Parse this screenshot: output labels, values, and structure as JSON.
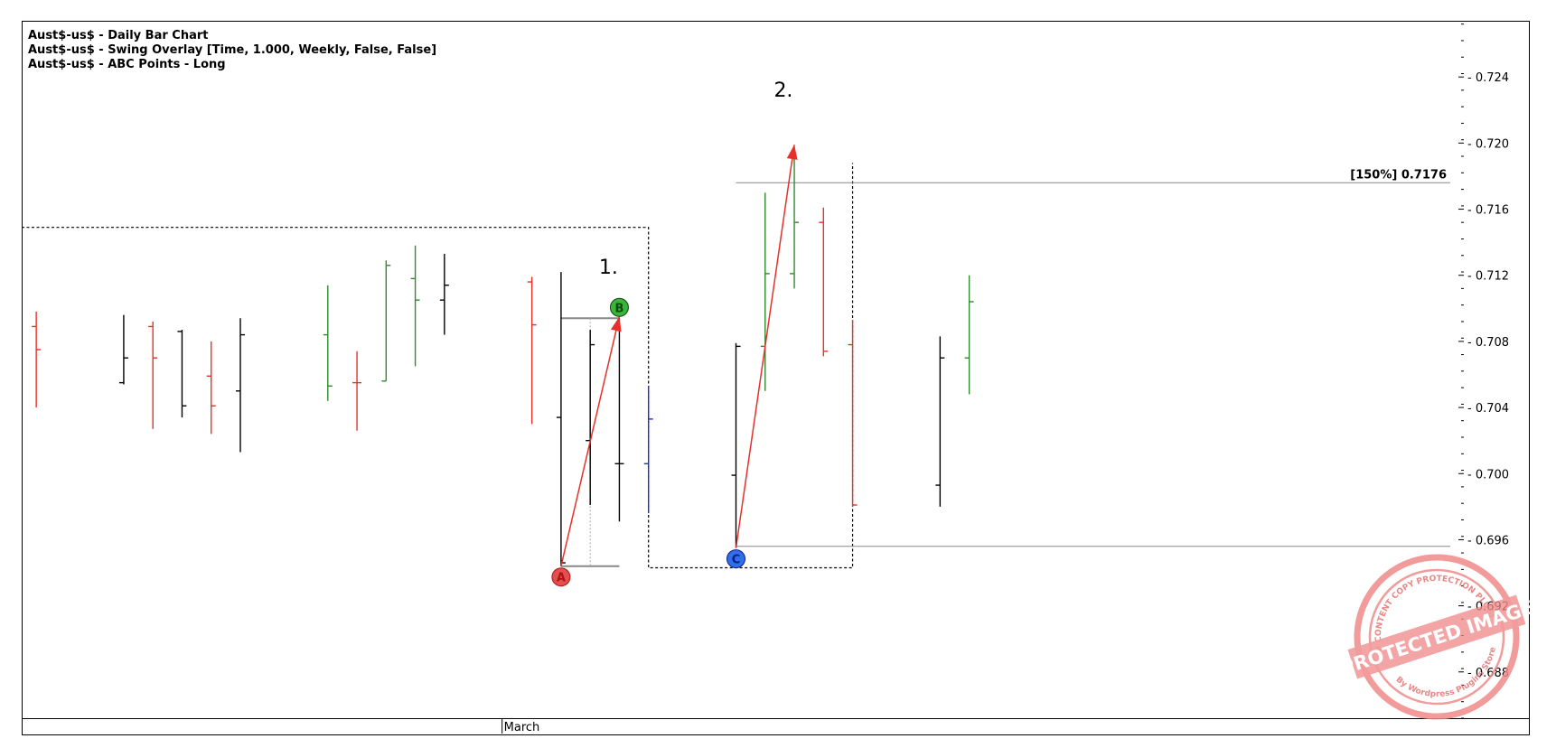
{
  "header": {
    "lines": [
      "Aust$-us$ - Daily Bar Chart",
      "Aust$-us$ - Swing Overlay [Time, 1.000, Weekly, False, False]",
      "Aust$-us$ - ABC Points - Long"
    ]
  },
  "chart_data": {
    "type": "bar",
    "subtype": "ohlc",
    "y_axis": {
      "ticks": [
        "0.724",
        "0.720",
        "0.716",
        "0.712",
        "0.708",
        "0.704",
        "0.700",
        "0.696",
        "0.692",
        "0.688"
      ],
      "ylim": [
        0.6852,
        0.7274
      ],
      "position": "right"
    },
    "x_axis": {
      "labels": [
        {
          "text": "March",
          "index": 17
        }
      ],
      "xlim": [
        -0.5,
        48.5
      ]
    },
    "colors": {
      "up": "#2e8b2e",
      "down": "#e8302a",
      "neutral": "#000000",
      "blue": "#1f2fd6",
      "arrow": "#e8302a",
      "grid": "#888888"
    },
    "bars": [
      {
        "i": 0,
        "o": 0.7089,
        "h": 0.7098,
        "l": 0.704,
        "c": 0.7075,
        "color": "down"
      },
      {
        "i": 3,
        "o": 0.7055,
        "h": 0.7096,
        "l": 0.7054,
        "c": 0.707,
        "color": "neutral"
      },
      {
        "i": 4,
        "o": 0.7089,
        "h": 0.7092,
        "l": 0.7027,
        "c": 0.707,
        "color": "down"
      },
      {
        "i": 5,
        "o": 0.7086,
        "h": 0.7087,
        "l": 0.7034,
        "c": 0.7041,
        "color": "neutral"
      },
      {
        "i": 6,
        "o": 0.7059,
        "h": 0.708,
        "l": 0.7024,
        "c": 0.7041,
        "color": "down"
      },
      {
        "i": 7,
        "o": 0.705,
        "h": 0.7094,
        "l": 0.7013,
        "c": 0.7084,
        "color": "neutral"
      },
      {
        "i": 10,
        "o": 0.7084,
        "h": 0.7114,
        "l": 0.7044,
        "c": 0.7053,
        "color": "up"
      },
      {
        "i": 11,
        "o": 0.7055,
        "h": 0.7074,
        "l": 0.7026,
        "c": 0.7055,
        "color": "down"
      },
      {
        "i": 12,
        "o": 0.7056,
        "h": 0.7129,
        "l": 0.7056,
        "c": 0.7126,
        "color": "up"
      },
      {
        "i": 13,
        "o": 0.7118,
        "h": 0.7138,
        "l": 0.7065,
        "c": 0.7105,
        "color": "up"
      },
      {
        "i": 14,
        "o": 0.7105,
        "h": 0.7133,
        "l": 0.7084,
        "c": 0.7114,
        "color": "neutral"
      },
      {
        "i": 17,
        "o": 0.7116,
        "h": 0.7119,
        "l": 0.703,
        "c": 0.709,
        "color": "down"
      },
      {
        "i": 18,
        "o": 0.7034,
        "h": 0.7122,
        "l": 0.6944,
        "c": 0.6946,
        "color": "neutral"
      },
      {
        "i": 19,
        "o": 0.702,
        "h": 0.7087,
        "l": 0.6981,
        "c": 0.7078,
        "color": "neutral"
      },
      {
        "i": 20,
        "o": 0.7006,
        "h": 0.7094,
        "l": 0.6971,
        "c": 0.7006,
        "color": "neutral"
      },
      {
        "i": 21,
        "o": 0.7006,
        "h": 0.7053,
        "l": 0.6976,
        "c": 0.7033,
        "color": "blue"
      },
      {
        "i": 24,
        "o": 0.6999,
        "h": 0.7079,
        "l": 0.6955,
        "c": 0.7077,
        "color": "neutral"
      },
      {
        "i": 25,
        "o": 0.7077,
        "h": 0.717,
        "l": 0.705,
        "c": 0.7121,
        "color": "up"
      },
      {
        "i": 26,
        "o": 0.7121,
        "h": 0.7198,
        "l": 0.7112,
        "c": 0.7152,
        "color": "up"
      },
      {
        "i": 27,
        "o": 0.7152,
        "h": 0.7161,
        "l": 0.7071,
        "c": 0.7074,
        "color": "down"
      },
      {
        "i": 28,
        "o": 0.7078,
        "h": 0.7093,
        "l": 0.698,
        "c": 0.6981,
        "color": "down"
      },
      {
        "i": 31,
        "o": 0.6993,
        "h": 0.7083,
        "l": 0.698,
        "c": 0.707,
        "color": "neutral"
      },
      {
        "i": 32,
        "o": 0.707,
        "h": 0.712,
        "l": 0.7048,
        "c": 0.7104,
        "color": "up"
      }
    ],
    "points": [
      {
        "label": "A",
        "i": 18,
        "price": 0.6944,
        "color": "#e05050",
        "text_color": "#b01010"
      },
      {
        "label": "B",
        "i": 20,
        "price": 0.7094,
        "color": "#3cb43c",
        "text_color": "#0a4a0a"
      },
      {
        "label": "C",
        "i": 24,
        "price": 0.6955,
        "color": "#2f6fe8",
        "text_color": "#0a1a8a"
      }
    ],
    "arrows": [
      {
        "from": {
          "i": 18,
          "price": 0.6944
        },
        "to": {
          "i": 20,
          "price": 0.7095
        }
      },
      {
        "from": {
          "i": 24,
          "price": 0.6955
        },
        "to": {
          "i": 26,
          "price": 0.7199
        }
      }
    ],
    "annotations": [
      {
        "text": "1.",
        "i": 19.3,
        "price": 0.7121
      },
      {
        "text": "2.",
        "i": 25.3,
        "price": 0.7228
      }
    ],
    "level": {
      "label": "[150%] 0.7176",
      "price": 0.7176,
      "from_i": 24
    },
    "c_level": {
      "price": 0.6956,
      "from_i": 24
    },
    "swing_boxes": [
      {
        "i1": -1,
        "i2": 21,
        "p1": 0.6943,
        "p2": 0.7149
      },
      {
        "i1": 21,
        "i2": 28,
        "p1": 0.6943,
        "p2": 0.7188
      }
    ]
  },
  "watermark": {
    "text_main": "PROTECTED IMAGE",
    "text_ring": "WP CONTENT COPY PROTECTION PLUGIN",
    "text_sub": "By Wordpress Plugins Store"
  }
}
